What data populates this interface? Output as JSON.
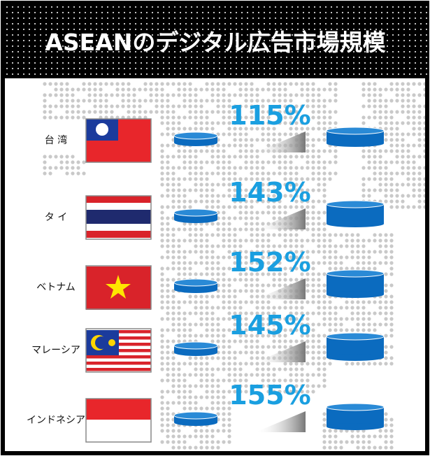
{
  "title": "ASEANのデジタル広告市場規模",
  "rows": [
    {
      "country": "台 湾",
      "growth": "115%"
    },
    {
      "country": "タ イ",
      "growth": "143%"
    },
    {
      "country": "ベトナム",
      "growth": "152%"
    },
    {
      "country": "マレーシア",
      "growth": "145%"
    },
    {
      "country": "インドネシア",
      "growth": "155%"
    }
  ]
}
